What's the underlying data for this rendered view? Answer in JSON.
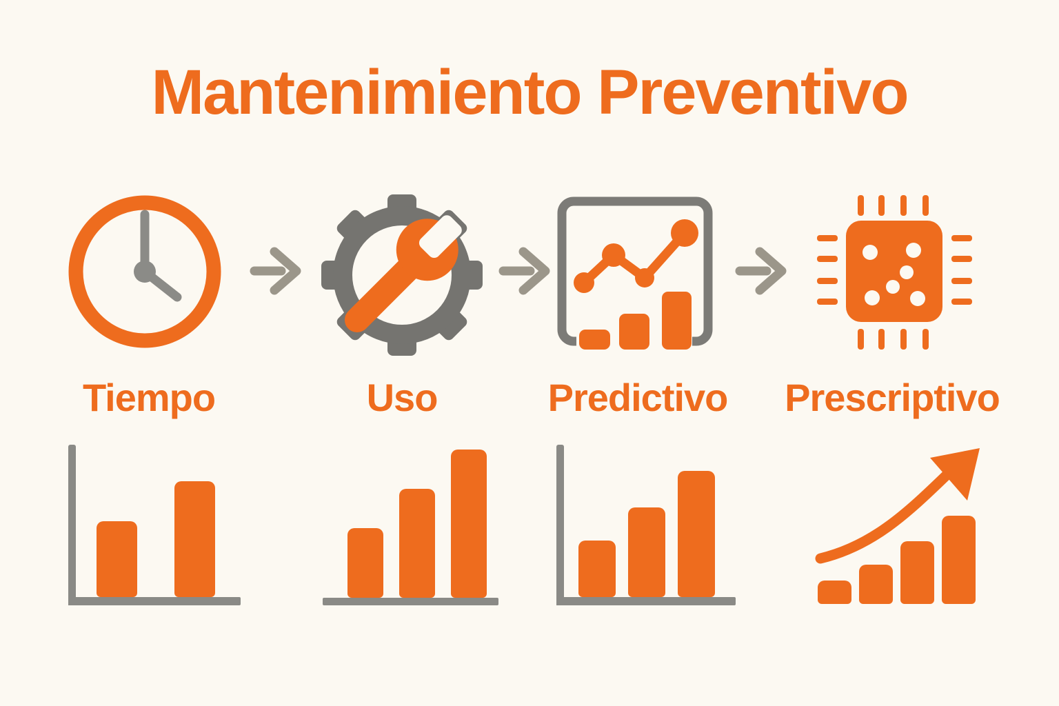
{
  "title": "Mantenimiento Preventivo",
  "colors": {
    "background": "#FCF9F2",
    "accent_orange": "#EE6C1E",
    "gear_gray": "#757470",
    "frame_gray": "#7C7B77",
    "flow_arrow_gray": "#9B968A",
    "axis_gray": "#8A8A86",
    "clock_hands_gray": "#8B8B87"
  },
  "stages": [
    {
      "label": "Tiempo",
      "icon": "clock-icon"
    },
    {
      "label": "Uso",
      "icon": "gear-wrench-icon"
    },
    {
      "label": "Predictivo",
      "icon": "line-and-bar-chart-icon"
    },
    {
      "label": "Prescriptivo",
      "icon": "microchip-icon"
    }
  ],
  "icons": {
    "flow_arrow": "right-arrow-icon",
    "growth_arrow": "growth-trend-arrow-icon"
  },
  "chart_data": [
    {
      "type": "bar",
      "stage": "Tiempo",
      "values_pct": [
        50,
        76
      ],
      "axes": "left-and-bottom",
      "bar_color": "#EE6C1E"
    },
    {
      "type": "bar",
      "stage": "Uso",
      "values_pct": [
        46,
        72,
        98
      ],
      "axes": "bottom-only",
      "bar_color": "#EE6C1E"
    },
    {
      "type": "bar",
      "stage": "Predictivo",
      "values_pct": [
        37,
        59,
        83
      ],
      "axes": "left-and-bottom",
      "bar_color": "#EE6C1E"
    },
    {
      "type": "bar",
      "stage": "Prescriptivo",
      "values_pct": [
        14,
        23,
        37,
        52
      ],
      "axes": "none",
      "overlay": "upward-curved-arrow",
      "bar_color": "#EE6C1E"
    }
  ]
}
